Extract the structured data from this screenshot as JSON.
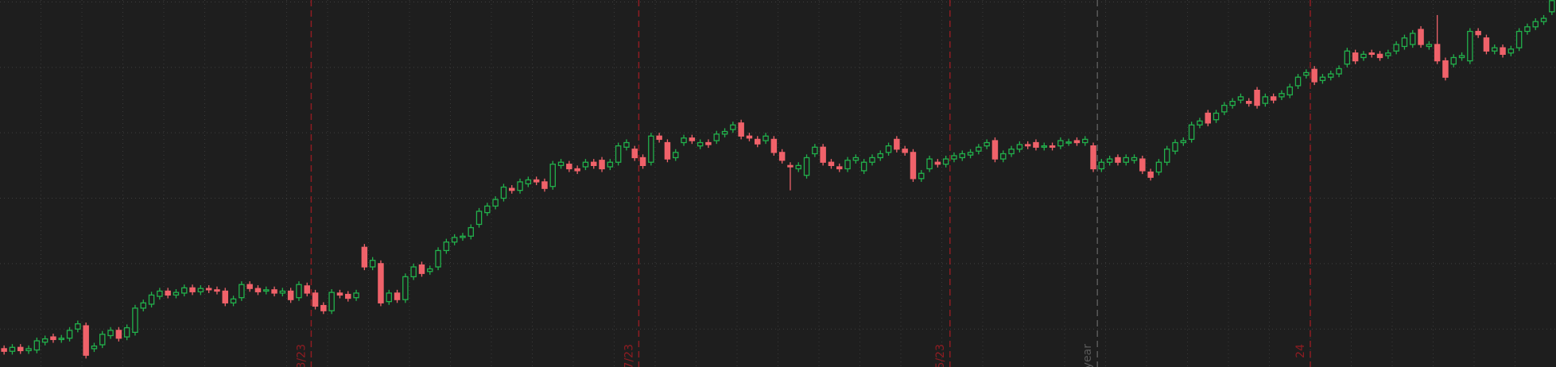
{
  "chart_data": {
    "type": "candlestick",
    "open": [
      0.7,
      0.66,
      0.72,
      0.67,
      0.68,
      0.8,
      0.88,
      0.84,
      0.86,
      1.0,
      1.05,
      0.7,
      0.76,
      0.9,
      0.98,
      0.88,
      0.95,
      1.32,
      1.38,
      1.5,
      1.58,
      1.52,
      1.55,
      1.63,
      1.57,
      1.62,
      1.6,
      1.58,
      1.4,
      1.48,
      1.68,
      1.62,
      1.58,
      1.6,
      1.55,
      1.58,
      1.48,
      1.66,
      1.55,
      1.36,
      1.28,
      1.55,
      1.53,
      1.48,
      2.25,
      1.95,
      2.0,
      1.42,
      1.55,
      1.45,
      1.8,
      1.98,
      1.88,
      1.95,
      2.2,
      2.33,
      2.4,
      2.42,
      2.6,
      2.78,
      2.88,
      3.0,
      3.15,
      3.12,
      3.22,
      3.28,
      3.25,
      3.18,
      3.5,
      3.52,
      3.45,
      3.48,
      3.55,
      3.58,
      3.48,
      3.55,
      3.78,
      3.75,
      3.62,
      3.55,
      3.95,
      3.85,
      3.62,
      3.85,
      3.92,
      3.8,
      3.85,
      3.88,
      3.98,
      4.05,
      4.15,
      3.95,
      3.9,
      3.88,
      3.9,
      3.7,
      3.5,
      3.45,
      3.35,
      3.68,
      3.78,
      3.55,
      3.48,
      3.45,
      3.58,
      3.42,
      3.55,
      3.62,
      3.7,
      3.9,
      3.75,
      3.7,
      3.3,
      3.45,
      3.55,
      3.52,
      3.6,
      3.62,
      3.66,
      3.72,
      3.8,
      3.88,
      3.6,
      3.68,
      3.75,
      3.82,
      3.85,
      3.78,
      3.8,
      3.8,
      3.85,
      3.88,
      3.85,
      3.8,
      3.45,
      3.55,
      3.62,
      3.55,
      3.58,
      3.6,
      3.4,
      3.4,
      3.55,
      3.72,
      3.85,
      3.9,
      4.12,
      4.3,
      4.2,
      4.32,
      4.42,
      4.5,
      4.48,
      4.65,
      4.45,
      4.55,
      4.55,
      4.58,
      4.72,
      4.88,
      4.97,
      4.8,
      4.85,
      4.9,
      5.05,
      5.22,
      5.15,
      5.22,
      5.2,
      5.18,
      5.25,
      5.32,
      5.35,
      5.58,
      5.32,
      5.35,
      5.1,
      5.05,
      5.15,
      5.1,
      5.55,
      5.45,
      5.25,
      5.3,
      5.22,
      5.3,
      5.55,
      5.62,
      5.7,
      5.85
    ],
    "high": [
      0.75,
      0.77,
      0.77,
      0.75,
      0.87,
      0.9,
      0.93,
      0.91,
      1.03,
      1.13,
      1.1,
      0.79,
      0.97,
      1.03,
      1.03,
      1.07,
      1.37,
      1.45,
      1.57,
      1.63,
      1.63,
      1.61,
      1.68,
      1.68,
      1.67,
      1.67,
      1.65,
      1.63,
      1.51,
      1.73,
      1.73,
      1.67,
      1.65,
      1.65,
      1.63,
      1.63,
      1.73,
      1.71,
      1.6,
      1.41,
      1.61,
      1.6,
      1.58,
      1.6,
      2.3,
      2.1,
      2.05,
      1.6,
      1.6,
      1.85,
      2.0,
      2.03,
      1.97,
      2.25,
      2.38,
      2.45,
      2.47,
      2.6,
      2.85,
      2.93,
      3.03,
      3.22,
      3.2,
      3.3,
      3.33,
      3.33,
      3.3,
      3.57,
      3.6,
      3.57,
      3.5,
      3.6,
      3.6,
      3.63,
      3.6,
      3.85,
      3.9,
      3.8,
      3.67,
      4.0,
      4.0,
      3.9,
      3.75,
      3.97,
      3.97,
      3.9,
      3.9,
      4.03,
      4.07,
      4.17,
      4.2,
      4.0,
      3.95,
      4.0,
      3.95,
      3.75,
      3.55,
      3.55,
      3.67,
      3.83,
      3.83,
      3.6,
      3.53,
      3.63,
      3.67,
      3.6,
      3.67,
      3.73,
      3.85,
      3.95,
      3.8,
      3.75,
      3.43,
      3.65,
      3.6,
      3.65,
      3.7,
      3.73,
      3.75,
      3.83,
      3.9,
      3.93,
      3.73,
      3.8,
      3.87,
      3.87,
      3.9,
      3.85,
      3.85,
      3.93,
      3.91,
      3.93,
      3.95,
      3.85,
      3.6,
      3.65,
      3.67,
      3.67,
      3.67,
      3.65,
      3.45,
      3.6,
      3.8,
      3.9,
      3.93,
      4.17,
      4.23,
      4.35,
      4.35,
      4.47,
      4.53,
      4.6,
      4.53,
      4.7,
      4.6,
      4.6,
      4.65,
      4.75,
      4.9,
      4.97,
      5.02,
      4.9,
      4.95,
      5.03,
      5.3,
      5.27,
      5.25,
      5.27,
      5.25,
      5.27,
      5.4,
      5.5,
      5.57,
      5.63,
      5.4,
      5.8,
      5.15,
      5.2,
      5.23,
      5.6,
      5.6,
      5.5,
      5.35,
      5.35,
      5.33,
      5.6,
      5.67,
      5.75,
      5.8,
      6.07
    ],
    "low": [
      0.61,
      0.61,
      0.62,
      0.62,
      0.63,
      0.75,
      0.79,
      0.79,
      0.81,
      0.95,
      0.55,
      0.65,
      0.71,
      0.85,
      0.81,
      0.83,
      0.9,
      1.27,
      1.33,
      1.45,
      1.47,
      1.47,
      1.5,
      1.52,
      1.52,
      1.55,
      1.53,
      1.35,
      1.35,
      1.43,
      1.57,
      1.52,
      1.53,
      1.5,
      1.5,
      1.4,
      1.43,
      1.5,
      1.3,
      1.23,
      1.23,
      1.47,
      1.42,
      1.43,
      1.9,
      1.9,
      1.35,
      1.37,
      1.4,
      1.4,
      1.75,
      1.8,
      1.83,
      1.9,
      2.15,
      2.28,
      2.35,
      2.37,
      2.55,
      2.73,
      2.83,
      2.95,
      3.07,
      3.07,
      3.17,
      3.2,
      3.1,
      3.13,
      3.45,
      3.4,
      3.37,
      3.43,
      3.45,
      3.4,
      3.43,
      3.5,
      3.73,
      3.57,
      3.45,
      3.5,
      3.85,
      3.55,
      3.57,
      3.8,
      3.83,
      3.75,
      3.77,
      3.83,
      3.93,
      4.0,
      3.9,
      3.87,
      3.78,
      3.83,
      3.65,
      3.53,
      3.12,
      3.4,
      3.3,
      3.63,
      3.5,
      3.45,
      3.4,
      3.4,
      3.53,
      3.37,
      3.5,
      3.57,
      3.65,
      3.7,
      3.65,
      3.25,
      3.25,
      3.4,
      3.47,
      3.47,
      3.55,
      3.57,
      3.61,
      3.67,
      3.75,
      3.55,
      3.55,
      3.63,
      3.7,
      3.75,
      3.73,
      3.73,
      3.73,
      3.75,
      3.8,
      3.8,
      3.8,
      3.4,
      3.4,
      3.5,
      3.5,
      3.5,
      3.53,
      3.37,
      3.27,
      3.35,
      3.5,
      3.67,
      3.8,
      3.85,
      4.07,
      4.1,
      4.15,
      4.27,
      4.37,
      4.45,
      4.4,
      4.37,
      4.4,
      4.45,
      4.5,
      4.53,
      4.67,
      4.83,
      4.73,
      4.75,
      4.8,
      4.85,
      5.0,
      5.05,
      5.1,
      5.15,
      5.1,
      5.13,
      5.2,
      5.27,
      5.3,
      5.3,
      5.27,
      5.05,
      4.8,
      5.0,
      5.1,
      5.05,
      5.45,
      5.2,
      5.2,
      5.15,
      5.17,
      5.25,
      5.5,
      5.57,
      5.65,
      5.8
    ],
    "close": [
      0.66,
      0.72,
      0.67,
      0.7,
      0.82,
      0.85,
      0.84,
      0.86,
      0.98,
      1.08,
      0.6,
      0.74,
      0.92,
      0.98,
      0.86,
      1.02,
      1.32,
      1.4,
      1.52,
      1.58,
      1.52,
      1.56,
      1.63,
      1.57,
      1.62,
      1.6,
      1.58,
      1.4,
      1.46,
      1.68,
      1.62,
      1.57,
      1.6,
      1.55,
      1.58,
      1.45,
      1.68,
      1.55,
      1.35,
      1.28,
      1.56,
      1.52,
      1.47,
      1.55,
      1.95,
      2.05,
      1.4,
      1.55,
      1.45,
      1.8,
      1.95,
      1.85,
      1.92,
      2.2,
      2.33,
      2.4,
      2.42,
      2.55,
      2.8,
      2.88,
      2.98,
      3.17,
      3.12,
      3.25,
      3.28,
      3.25,
      3.15,
      3.52,
      3.55,
      3.45,
      3.42,
      3.55,
      3.5,
      3.45,
      3.55,
      3.8,
      3.85,
      3.62,
      3.5,
      3.95,
      3.9,
      3.6,
      3.7,
      3.92,
      3.88,
      3.85,
      3.82,
      3.98,
      4.02,
      4.12,
      3.95,
      3.92,
      3.83,
      3.95,
      3.7,
      3.58,
      3.48,
      3.5,
      3.62,
      3.78,
      3.55,
      3.5,
      3.45,
      3.58,
      3.62,
      3.55,
      3.62,
      3.68,
      3.8,
      3.75,
      3.7,
      3.3,
      3.38,
      3.6,
      3.52,
      3.6,
      3.65,
      3.68,
      3.7,
      3.78,
      3.85,
      3.6,
      3.68,
      3.75,
      3.82,
      3.8,
      3.78,
      3.8,
      3.78,
      3.88,
      3.86,
      3.85,
      3.9,
      3.45,
      3.55,
      3.6,
      3.55,
      3.62,
      3.62,
      3.42,
      3.32,
      3.55,
      3.75,
      3.85,
      3.88,
      4.12,
      4.18,
      4.15,
      4.3,
      4.42,
      4.48,
      4.55,
      4.45,
      4.42,
      4.55,
      4.5,
      4.6,
      4.7,
      4.85,
      4.92,
      4.78,
      4.85,
      4.9,
      4.98,
      5.25,
      5.1,
      5.2,
      5.2,
      5.15,
      5.22,
      5.35,
      5.45,
      5.52,
      5.35,
      5.35,
      5.1,
      4.85,
      5.15,
      5.18,
      5.55,
      5.5,
      5.25,
      5.3,
      5.2,
      5.28,
      5.55,
      5.62,
      5.7,
      5.75,
      6.02
    ],
    "up_color": "#22b14c",
    "down_color": "#f0626a",
    "ylim": [
      0.42,
      6.03
    ],
    "yticks": [
      1,
      2,
      3,
      4,
      5,
      6
    ],
    "grid": true,
    "markers": [
      {
        "index": 38,
        "label": "3/23",
        "color": "#8e1c22"
      },
      {
        "index": 78,
        "label": "7/23",
        "color": "#8e1c22"
      },
      {
        "index": 116,
        "label": "5/23",
        "color": "#8e1c22"
      },
      {
        "index": 134,
        "label": "year",
        "color": "#5a5a5a"
      },
      {
        "index": 160,
        "label": "24",
        "color": "#8e1c22"
      }
    ]
  }
}
